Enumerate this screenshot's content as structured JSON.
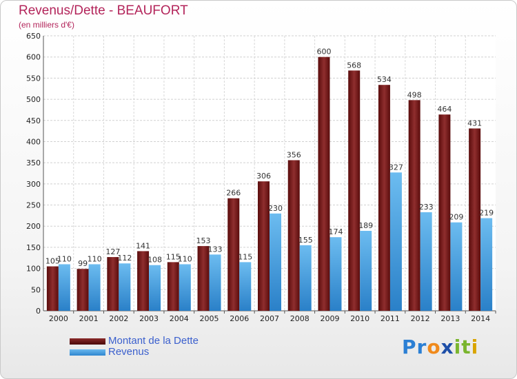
{
  "chart_data": {
    "type": "bar",
    "title": "Revenus/Dette - BEAUFORT",
    "subtitle": "(en milliers d'€)",
    "categories": [
      "2000",
      "2001",
      "2002",
      "2003",
      "2004",
      "2005",
      "2006",
      "2007",
      "2008",
      "2009",
      "2010",
      "2011",
      "2012",
      "2013",
      "2014"
    ],
    "series": [
      {
        "name": "Montant de la Dette",
        "color": "#6b1414",
        "values": [
          105,
          99,
          127,
          141,
          115,
          153,
          266,
          306,
          356,
          600,
          568,
          534,
          498,
          464,
          431
        ]
      },
      {
        "name": "Revenus",
        "color": "#3d98e0",
        "values": [
          110,
          110,
          112,
          108,
          110,
          133,
          115,
          230,
          155,
          174,
          189,
          327,
          233,
          209,
          219
        ]
      }
    ],
    "ylim": [
      0,
      650
    ],
    "yticks": [
      0,
      50,
      100,
      150,
      200,
      250,
      300,
      350,
      400,
      450,
      500,
      550,
      600,
      650
    ],
    "grid": true,
    "legend_position": "bottom-left"
  },
  "logo": {
    "letters": [
      "P",
      "r",
      "o",
      "x",
      "i",
      "t",
      "i"
    ],
    "colors": [
      "#2b7fd4",
      "#2b7fd4",
      "#f08a1c",
      "#1e4fa8",
      "#7ab52e",
      "#7ab52e",
      "#d9a400"
    ]
  }
}
